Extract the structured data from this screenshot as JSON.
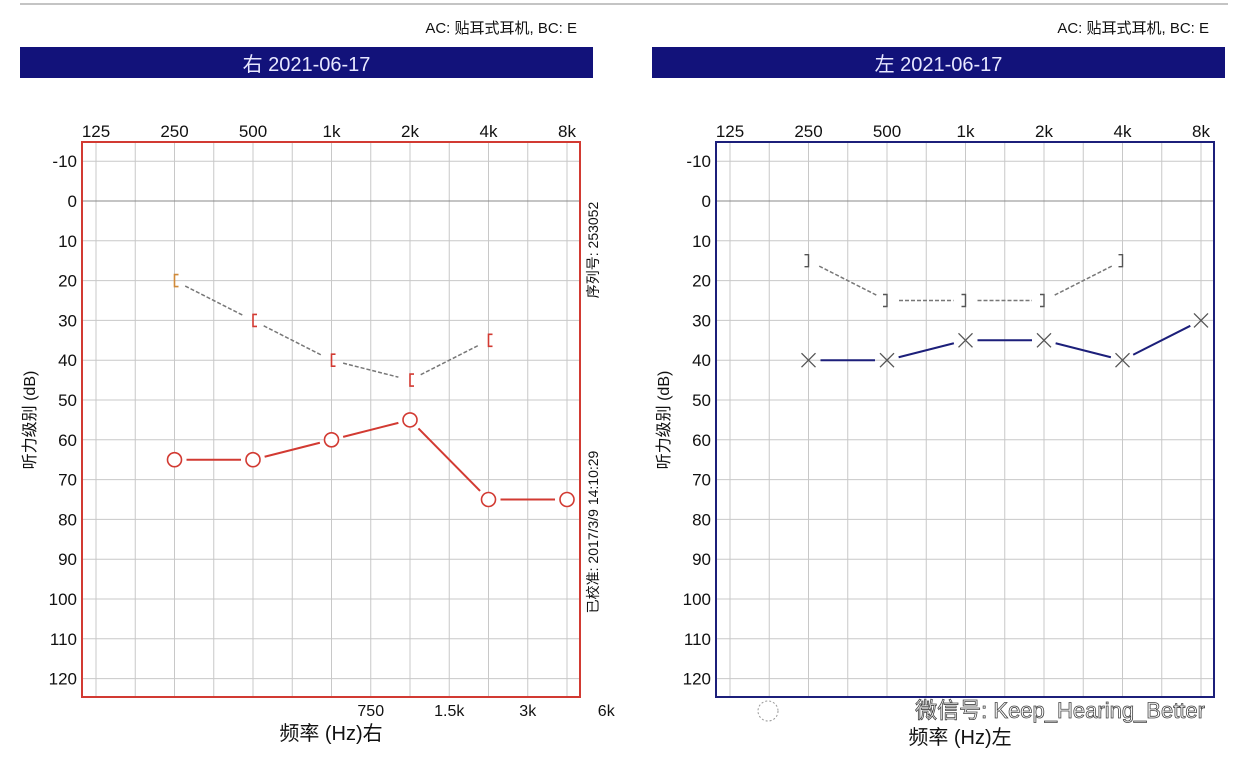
{
  "header_note": "AC: 贴耳式耳机, BC: E",
  "watermark": "微信号: Keep_Hearing_Better",
  "colors": {
    "title_bar": "#12127a",
    "right_ear": "#d23a32",
    "left_ear": "#1c1f7a",
    "grid": "#c8c8c8",
    "bc_line": "#777777"
  },
  "chart_data": [
    {
      "type": "line",
      "title": "右 2021-06-17",
      "ear": "right",
      "top_tick_labels": [
        "125",
        "250",
        "500",
        "1k",
        "2k",
        "4k",
        "8k"
      ],
      "bottom_tick_labels": [
        "750",
        "1.5k",
        "3k",
        "6k"
      ],
      "xlabel": "频率 (Hz)右",
      "ylabel": "听力级别 (dB)",
      "yticks": [
        -10,
        0,
        10,
        20,
        30,
        40,
        50,
        60,
        70,
        80,
        90,
        100,
        110,
        120
      ],
      "x_scale": "log2",
      "ylim": [
        -15,
        125
      ],
      "y_inverted": true,
      "grid": true,
      "side_text_top": "序列号: 253052",
      "side_text_bottom": "已校准: 2017/3/9 14:10:29",
      "series": [
        {
          "marker": "circle",
          "x": [
            250,
            500,
            1000,
            2000,
            4000,
            8000
          ],
          "y": [
            65,
            65,
            60,
            55,
            75,
            75
          ]
        },
        {
          "marker": "bracket-left",
          "x": [
            250,
            500,
            1000,
            2000,
            4000
          ],
          "y": [
            20,
            30,
            40,
            45,
            35
          ]
        }
      ]
    },
    {
      "type": "line",
      "title": "左 2021-06-17",
      "ear": "left",
      "header_note": "AC: 贴耳式耳机, BC: E",
      "top_tick_labels": [
        "125",
        "250",
        "500",
        "1k",
        "2k",
        "4k",
        "8k"
      ],
      "xlabel": "频率 (Hz)左",
      "ylabel": "听力级别 (dB)",
      "yticks": [
        -10,
        0,
        10,
        20,
        30,
        40,
        50,
        60,
        70,
        80,
        90,
        100,
        110,
        120
      ],
      "x_scale": "log2",
      "ylim": [
        -15,
        125
      ],
      "y_inverted": true,
      "grid": true,
      "series": [
        {
          "marker": "cross",
          "x": [
            250,
            500,
            1000,
            2000,
            4000,
            8000
          ],
          "y": [
            40,
            40,
            35,
            35,
            40,
            30
          ]
        },
        {
          "marker": "bracket-right",
          "x": [
            250,
            500,
            1000,
            2000,
            4000
          ],
          "y": [
            15,
            25,
            25,
            25,
            15
          ]
        }
      ]
    }
  ]
}
